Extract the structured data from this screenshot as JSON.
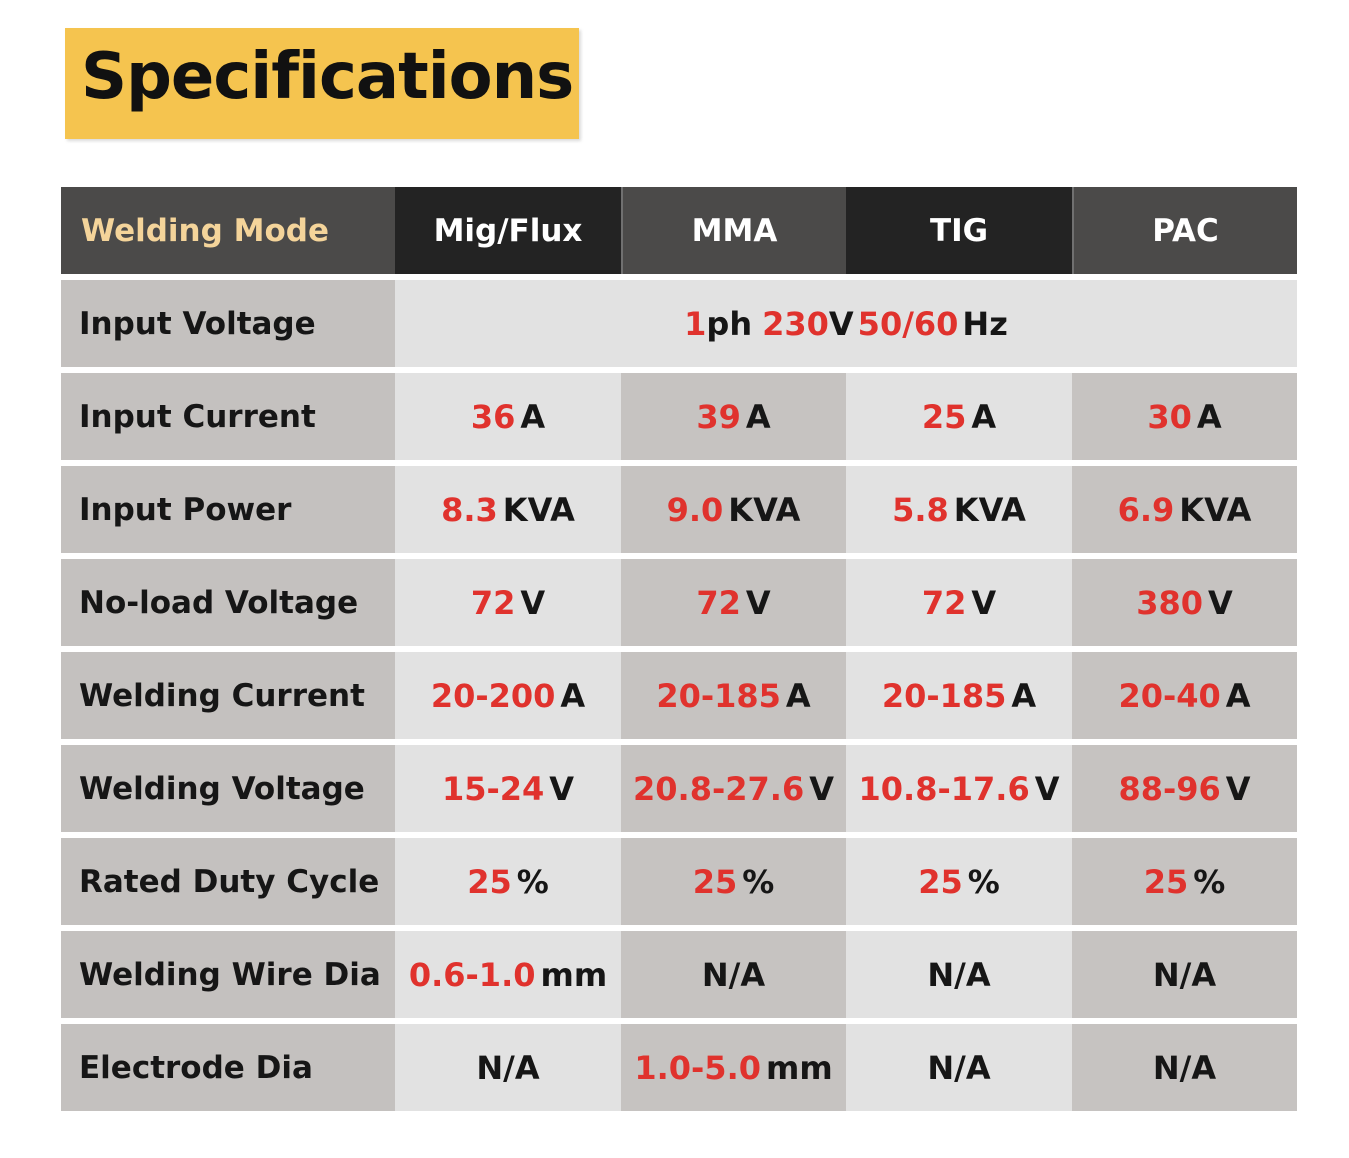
{
  "title": "Specifications",
  "table": {
    "header": {
      "label": "Welding Mode",
      "modes": [
        "Mig/Flux",
        "MMA",
        "TIG",
        "PAC"
      ]
    },
    "input_voltage": {
      "label": "Input Voltage",
      "phase_value": "1",
      "phase_unit": "ph",
      "voltage_value": "230",
      "voltage_unit": "V",
      "freq_value": "50/60",
      "freq_unit": "Hz"
    },
    "rows": [
      {
        "label": "Input Current",
        "cells": [
          {
            "value": "36",
            "unit": "A"
          },
          {
            "value": "39",
            "unit": "A"
          },
          {
            "value": "25",
            "unit": "A"
          },
          {
            "value": "30",
            "unit": "A"
          }
        ]
      },
      {
        "label": "Input Power",
        "cells": [
          {
            "value": "8.3",
            "unit": "KVA"
          },
          {
            "value": "9.0",
            "unit": "KVA"
          },
          {
            "value": "5.8",
            "unit": "KVA"
          },
          {
            "value": "6.9",
            "unit": "KVA"
          }
        ]
      },
      {
        "label": "No-load Voltage",
        "cells": [
          {
            "value": "72",
            "unit": "V"
          },
          {
            "value": "72",
            "unit": "V"
          },
          {
            "value": "72",
            "unit": "V"
          },
          {
            "value": "380",
            "unit": "V"
          }
        ]
      },
      {
        "label": "Welding Current",
        "cells": [
          {
            "value": "20-200",
            "unit": "A"
          },
          {
            "value": "20-185",
            "unit": "A"
          },
          {
            "value": "20-185",
            "unit": "A"
          },
          {
            "value": "20-40",
            "unit": "A"
          }
        ]
      },
      {
        "label": "Welding Voltage",
        "cells": [
          {
            "value": "15-24",
            "unit": "V"
          },
          {
            "value": "20.8-27.6",
            "unit": "V"
          },
          {
            "value": "10.8-17.6",
            "unit": "V"
          },
          {
            "value": "88-96",
            "unit": "V"
          }
        ]
      },
      {
        "label": "Rated Duty Cycle",
        "cells": [
          {
            "value": "25",
            "unit": "%"
          },
          {
            "value": "25",
            "unit": "%"
          },
          {
            "value": "25",
            "unit": "%"
          },
          {
            "value": "25",
            "unit": "%"
          }
        ]
      },
      {
        "label": "Welding Wire Dia",
        "cells": [
          {
            "value": "0.6-1.0",
            "unit": "mm"
          },
          {
            "value": "",
            "unit": "N/A"
          },
          {
            "value": "",
            "unit": "N/A"
          },
          {
            "value": "",
            "unit": "N/A"
          }
        ]
      },
      {
        "label": "Electrode Dia",
        "cells": [
          {
            "value": "",
            "unit": "N/A"
          },
          {
            "value": "1.0-5.0",
            "unit": "mm"
          },
          {
            "value": "",
            "unit": "N/A"
          },
          {
            "value": "",
            "unit": "N/A"
          }
        ]
      }
    ]
  },
  "colors": {
    "title_bg": "#f5c44f",
    "header_dark": "#232323",
    "header_mid": "#4b4a49",
    "value_red": "#e0322d",
    "cell_light": "#e2e2e2",
    "cell_dark": "#c6c3c1"
  }
}
